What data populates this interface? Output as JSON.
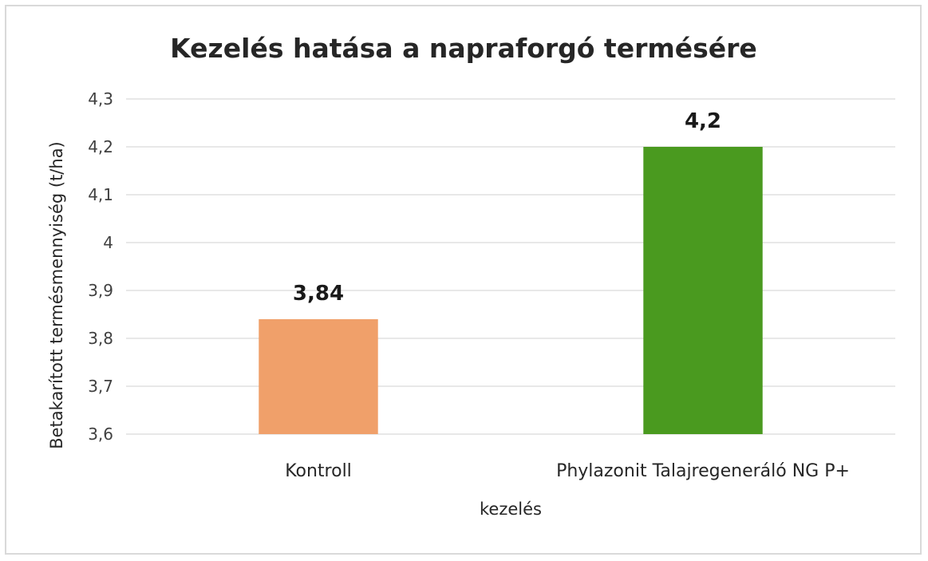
{
  "chart_data": {
    "type": "bar",
    "title": "Kezelés hatása a napraforgó termésére",
    "xlabel": "kezelés",
    "ylabel": "Betakarított termésmennyiség (t/ha)",
    "categories": [
      "Kontroll",
      "Phylazonit Talajregeneráló NG P+"
    ],
    "values": [
      3.84,
      4.2
    ],
    "data_labels": [
      "3,84",
      "4,2"
    ],
    "colors": [
      "#f0a06a",
      "#4a9a1f"
    ],
    "ylim": [
      3.6,
      4.3
    ],
    "yticks": [
      {
        "value": 3.6,
        "label": "3,6"
      },
      {
        "value": 3.7,
        "label": "3,7"
      },
      {
        "value": 3.8,
        "label": "3,8"
      },
      {
        "value": 3.9,
        "label": "3,9"
      },
      {
        "value": 4.0,
        "label": "4"
      },
      {
        "value": 4.1,
        "label": "4,1"
      },
      {
        "value": 4.2,
        "label": "4,2"
      },
      {
        "value": 4.3,
        "label": "4,3"
      }
    ],
    "grid": true,
    "legend": "none"
  }
}
